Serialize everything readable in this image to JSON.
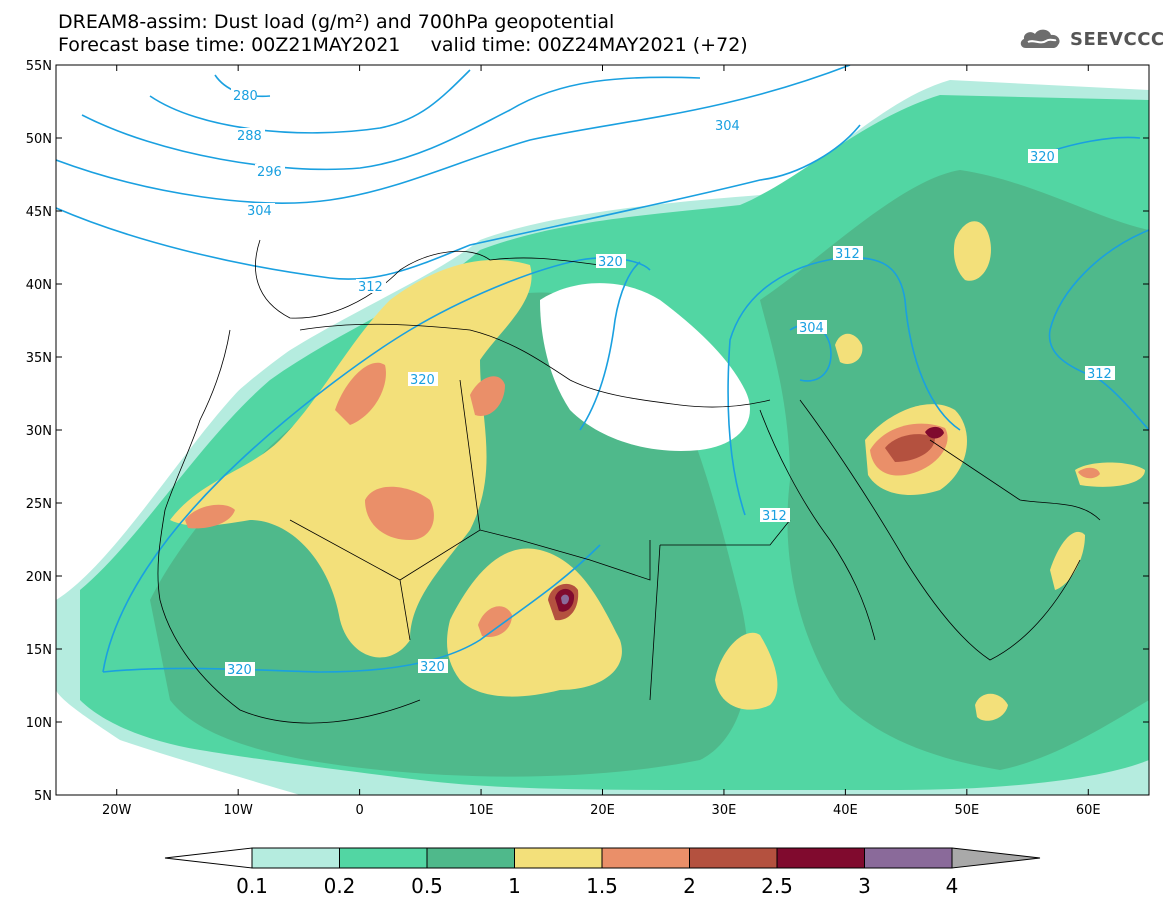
{
  "header": {
    "line1": "DREAM8-assim: Dust load (g/m²) and 700hPa geopotential",
    "line2": "Forecast base time: 00Z21MAY2021     valid time: 00Z24MAY2021 (+72)"
  },
  "logo": {
    "text": "SEEVCCC",
    "icon": "cloud-icon"
  },
  "map": {
    "lat_labels": [
      "55N",
      "50N",
      "45N",
      "40N",
      "35N",
      "30N",
      "25N",
      "20N",
      "15N",
      "10N",
      "5N"
    ],
    "lon_labels": [
      "20W",
      "10W",
      "0",
      "10E",
      "20E",
      "30E",
      "40E",
      "50E",
      "60E"
    ],
    "lat_range": [
      5,
      55
    ],
    "lon_range": [
      -25,
      65
    ],
    "contour_labels": [
      "280",
      "288",
      "296",
      "304",
      "304",
      "312",
      "320",
      "320",
      "304",
      "312",
      "312",
      "320",
      "312",
      "320",
      "320"
    ]
  },
  "colorbar": {
    "ticks": [
      "0.1",
      "0.2",
      "0.5",
      "1",
      "1.5",
      "2",
      "2.5",
      "3",
      "4"
    ],
    "colors": [
      "#ffffff",
      "#b5ecdf",
      "#52d6a3",
      "#4fb98b",
      "#f3e07a",
      "#ea8f69",
      "#b4513f",
      "#800a2e",
      "#8a6a9a",
      "#a9a9a9"
    ]
  }
}
